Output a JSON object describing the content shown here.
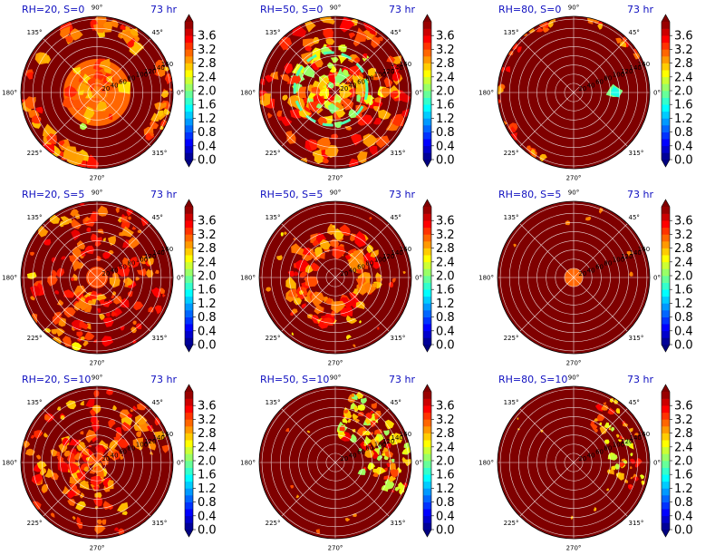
{
  "chart_data": {
    "type": "heatmap",
    "projection": "polar",
    "layout": {
      "rows": 3,
      "cols": 3
    },
    "theta_ticks": [
      "0°",
      "45°",
      "90°",
      "135°",
      "180°",
      "225°",
      "270°",
      "315°"
    ],
    "r_ticks": [
      "20",
      "40",
      "60",
      "80",
      "100",
      "120",
      "140",
      "160"
    ],
    "colorbar": {
      "min": 0.0,
      "max": 4.0,
      "extend": "both",
      "colormap": "jet",
      "ticks": [
        "0.0",
        "0.4",
        "0.8",
        "1.2",
        "1.6",
        "2.0",
        "2.4",
        "2.8",
        "3.2",
        "3.6"
      ]
    },
    "panels": [
      {
        "title": "RH=20, S=0",
        "time": "73 hr",
        "rh": 20,
        "s": 0
      },
      {
        "title": "RH=50, S=0",
        "time": "73 hr",
        "rh": 50,
        "s": 0
      },
      {
        "title": "RH=80, S=0",
        "time": "73 hr",
        "rh": 80,
        "s": 0
      },
      {
        "title": "RH=20, S=5",
        "time": "73 hr",
        "rh": 20,
        "s": 5
      },
      {
        "title": "RH=50, S=5",
        "time": "73 hr",
        "rh": 50,
        "s": 5
      },
      {
        "title": "RH=80, S=5",
        "time": "73 hr",
        "rh": 80,
        "s": 5
      },
      {
        "title": "RH=20, S=10",
        "time": "73 hr",
        "rh": 20,
        "s": 10
      },
      {
        "title": "RH=50, S=10",
        "time": "73 hr",
        "rh": 50,
        "s": 10
      },
      {
        "title": "RH=80, S=10",
        "time": "73 hr",
        "rh": 80,
        "s": 10
      }
    ]
  },
  "colors": {
    "background_field": "#7f0000",
    "gridline": "#ffffff",
    "title": "#1010c0"
  }
}
